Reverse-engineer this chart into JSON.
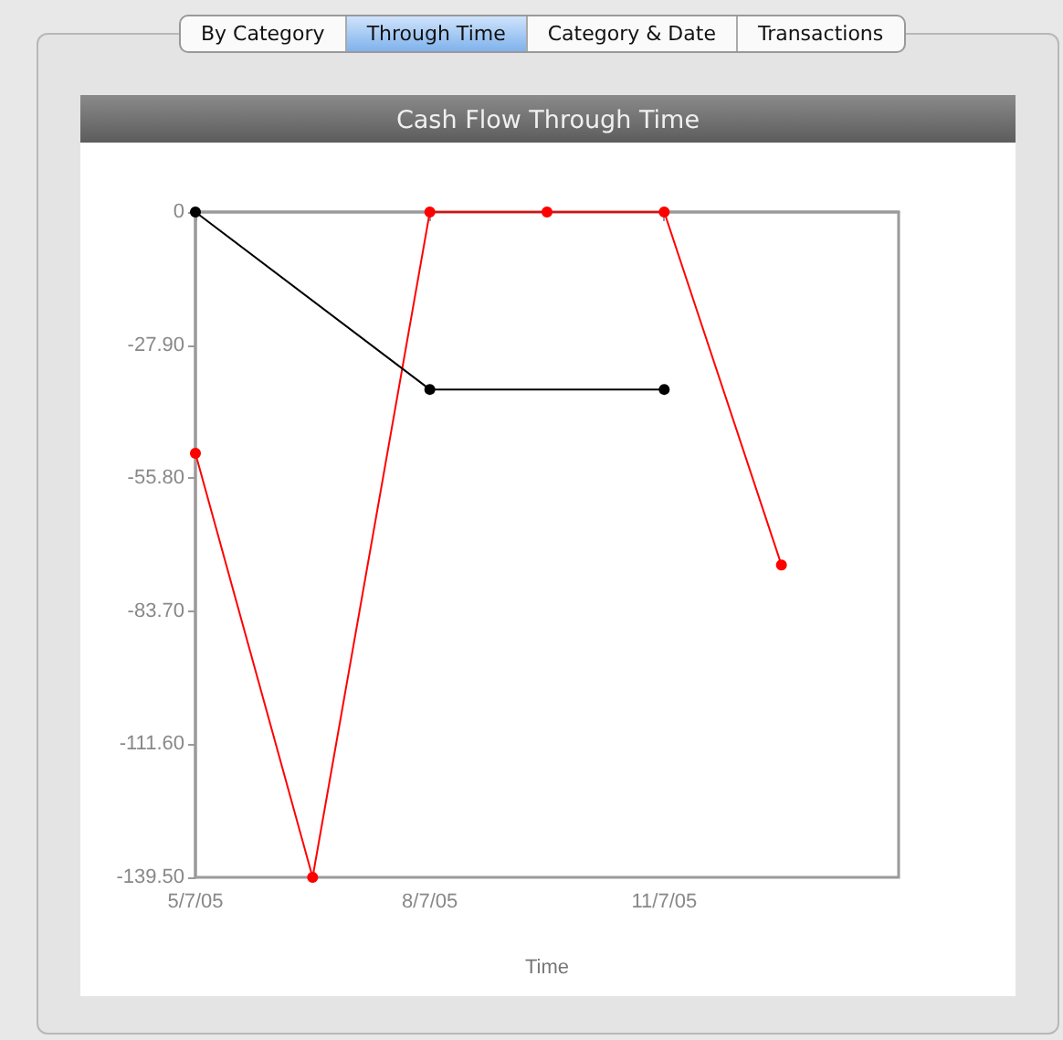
{
  "chart_data": {
    "type": "line",
    "title": "Cash Flow Through Time",
    "xlabel": "Time",
    "annotations": [
      "By Category",
      "Through Time",
      "Category & Date",
      "Transactions"
    ],
    "xlim": [
      "2005-05-07",
      "2006-02-07"
    ],
    "xticks": [
      {
        "value": "2005-05-07",
        "label": "5/7/05"
      },
      {
        "value": "2005-08-07",
        "label": "8/7/05"
      },
      {
        "value": "2005-11-07",
        "label": "11/7/05"
      }
    ],
    "ylim": [
      -139.5,
      0
    ],
    "yticks": [
      {
        "value": -139.5,
        "label": "-139.50"
      },
      {
        "value": -111.6,
        "label": "-111.60"
      },
      {
        "value": -83.7,
        "label": "-83.70"
      },
      {
        "value": -55.8,
        "label": "-55.80"
      },
      {
        "value": -27.9,
        "label": "-27.90"
      },
      0
    ],
    "grid": false,
    "marker": "circle",
    "line_style": "solid",
    "series": [
      {
        "color": "#ff0000",
        "x": [
          "2005-05-07",
          "2005-06-22",
          "2005-08-07",
          "2005-09-22",
          "2005-11-07",
          "2005-12-23"
        ],
        "values": [
          -50.6,
          -139.5,
          0,
          0,
          0,
          -74.0
        ]
      },
      {
        "color": "#000000",
        "x": [
          "2005-05-07",
          "2005-08-07",
          "2005-11-07"
        ],
        "values": [
          0,
          -37.2,
          -37.2
        ]
      }
    ]
  }
}
